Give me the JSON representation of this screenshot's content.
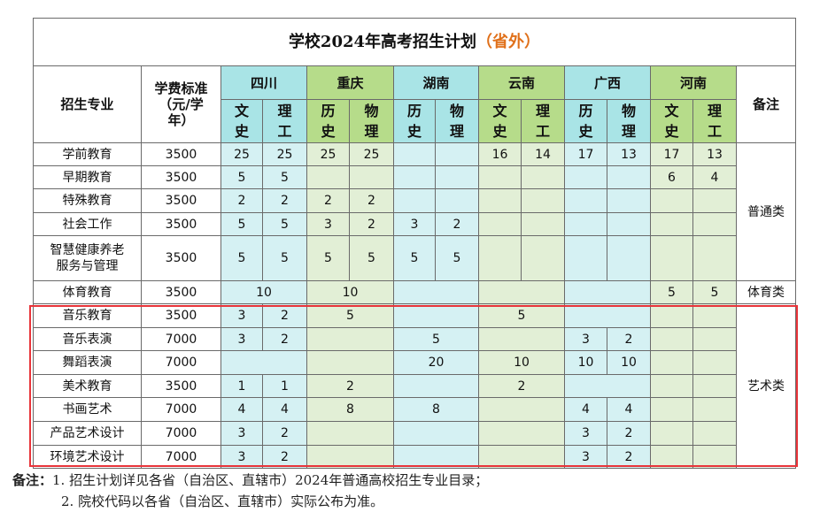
{
  "title": {
    "main": "学校2024年高考招生计划",
    "accent": "（省外）"
  },
  "headers": {
    "major": "招生专业",
    "fee": "学费标准\n（元/学\n年）",
    "remark": "备注",
    "provinces": [
      "四川",
      "重庆",
      "湖南",
      "云南",
      "广西",
      "河南"
    ],
    "subjects": [
      "文\n史",
      "理\n工",
      "历\n史",
      "物\n理",
      "历\n史",
      "物\n理",
      "文\n史",
      "理\n工",
      "历\n史",
      "物\n理",
      "文\n史",
      "理\n工"
    ]
  },
  "rows": [
    {
      "major": "学前教育",
      "fee": "3500",
      "values": [
        "25",
        "25",
        "25",
        "25",
        "",
        "",
        "16",
        "14",
        "17",
        "13",
        "17",
        "13"
      ]
    },
    {
      "major": "早期教育",
      "fee": "3500",
      "values": [
        "5",
        "5",
        "",
        "",
        "",
        "",
        "",
        "",
        "",
        "",
        "6",
        "4"
      ]
    },
    {
      "major": "特殊教育",
      "fee": "3500",
      "values": [
        "2",
        "2",
        "2",
        "2",
        "",
        "",
        "",
        "",
        "",
        "",
        "",
        ""
      ]
    },
    {
      "major": "社会工作",
      "fee": "3500",
      "values": [
        "5",
        "5",
        "3",
        "2",
        "3",
        "2",
        "",
        "",
        "",
        "",
        "",
        ""
      ]
    },
    {
      "major": "智慧健康养老\n服务与管理",
      "fee": "3500",
      "values": [
        "5",
        "5",
        "5",
        "5",
        "5",
        "5",
        "",
        "",
        "",
        "",
        "",
        ""
      ]
    },
    {
      "major": "体育教育",
      "fee": "3500",
      "merged": {
        "sc": "10",
        "cq": "10",
        "hn": "",
        "yn": "",
        "gx": ""
      },
      "values": [
        "",
        "",
        "",
        "",
        "",
        "",
        "",
        "",
        "",
        "",
        "5",
        "5"
      ]
    },
    {
      "major": "音乐教育",
      "fee": "3500",
      "merged": {
        "cq": "5",
        "hn": "",
        "yn": "5",
        "gx": ""
      },
      "values": [
        "3",
        "2",
        "",
        "",
        "",
        "",
        "",
        "",
        "",
        "",
        "",
        ""
      ]
    },
    {
      "major": "音乐表演",
      "fee": "7000",
      "merged": {
        "cq": "",
        "hn": "5",
        "yn": ""
      },
      "values": [
        "3",
        "2",
        "",
        "",
        "",
        "",
        "",
        "",
        "3",
        "2",
        "",
        ""
      ]
    },
    {
      "major": "舞蹈表演",
      "fee": "7000",
      "merged": {
        "sc": "",
        "cq": "",
        "hn": "20",
        "yn": "10"
      },
      "values": [
        "",
        "",
        "",
        "",
        "",
        "",
        "",
        "",
        "10",
        "10",
        "",
        ""
      ]
    },
    {
      "major": "美术教育",
      "fee": "3500",
      "merged": {
        "cq": "2",
        "hn": "",
        "yn": "2",
        "gx": ""
      },
      "values": [
        "1",
        "1",
        "",
        "",
        "",
        "",
        "",
        "",
        "",
        "",
        "",
        ""
      ]
    },
    {
      "major": "书画艺术",
      "fee": "7000",
      "merged": {
        "cq": "8",
        "hn": "8",
        "yn": ""
      },
      "values": [
        "4",
        "4",
        "",
        "",
        "",
        "",
        "",
        "",
        "4",
        "4",
        "",
        ""
      ]
    },
    {
      "major": "产品艺术设计",
      "fee": "7000",
      "merged": {
        "cq": "",
        "hn": "",
        "yn": ""
      },
      "values": [
        "3",
        "2",
        "",
        "",
        "",
        "",
        "",
        "",
        "3",
        "2",
        "",
        ""
      ]
    },
    {
      "major": "环境艺术设计",
      "fee": "7000",
      "merged": {
        "cq": "",
        "hn": "",
        "yn": ""
      },
      "values": [
        "3",
        "2",
        "",
        "",
        "",
        "",
        "",
        "",
        "3",
        "2",
        "",
        ""
      ]
    }
  ],
  "remarks": {
    "general": "普通类",
    "sports": "体育类",
    "art": "艺术类"
  },
  "notes": {
    "label": "备注：",
    "line1": "1. 招生计划详见各省（自治区、直辖市）2024年普通高校招生专业目录；",
    "line2": "2. 院校代码以各省（自治区、直辖市）实际公布为准。"
  },
  "colors": {
    "cyan_header": "#a9e4e6",
    "green_header": "#b6dc8a",
    "cyan_body": "#d5f1f3",
    "green_body": "#e2efd6",
    "highlight": "#e8343a",
    "accent": "#e0701a"
  }
}
